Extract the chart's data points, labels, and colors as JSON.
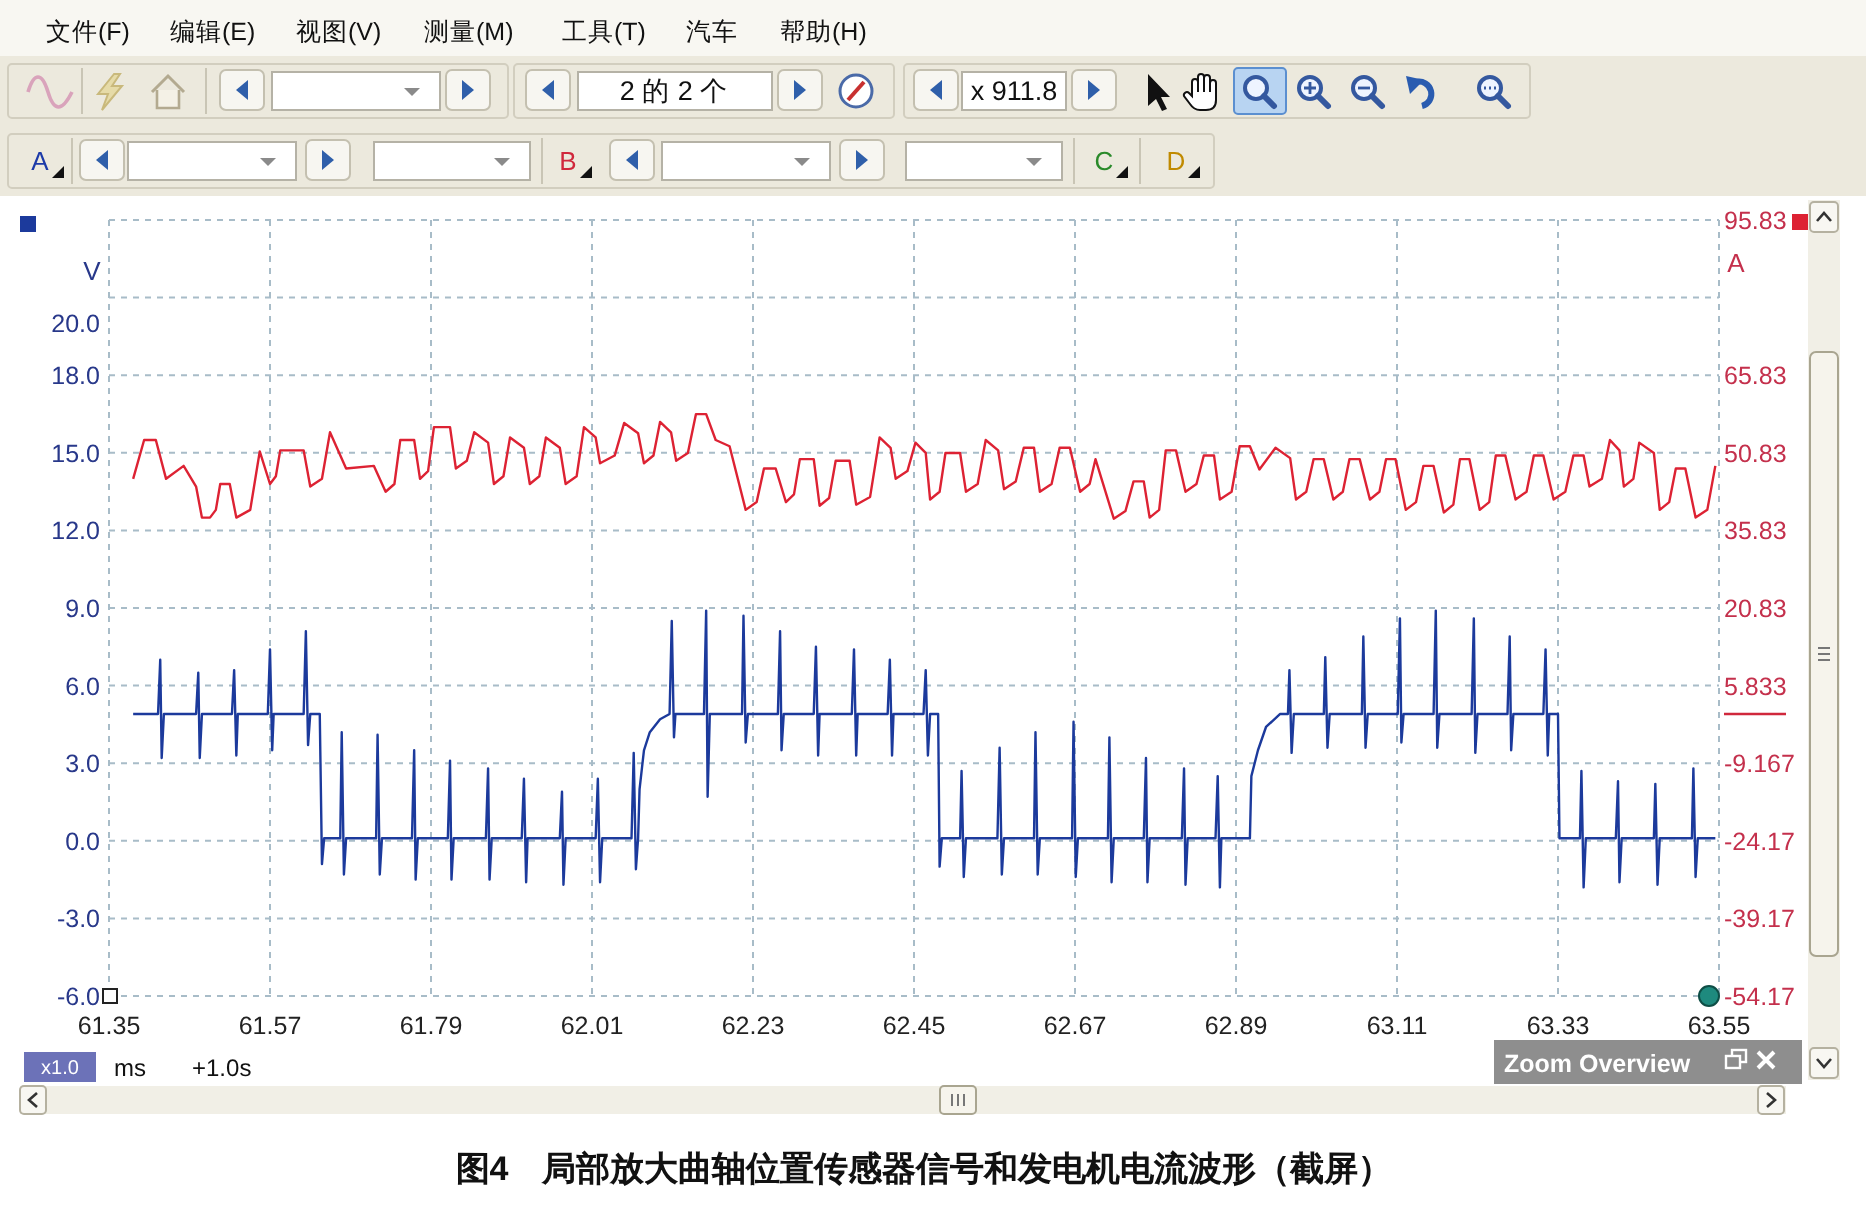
{
  "chart_data": {
    "type": "line",
    "title": "图4　局部放大曲轴位置传感器信号和发电机电流波形（截屏）",
    "xlabel": "ms",
    "ylabel": "V",
    "y2label": "A",
    "annotations": [
      "文件(F)",
      "编辑(E)",
      "视图(V)",
      "测量(M)",
      "工具(T)",
      "汽车",
      "帮助(H)",
      "2 的 2 个",
      "x 911.8",
      "A",
      "B",
      "C",
      "D",
      "x1.0",
      "+1.0s",
      "Zoom Overview"
    ],
    "xlim": [
      61.35,
      63.55
    ],
    "xticks": [
      61.35,
      61.57,
      61.79,
      62.01,
      62.23,
      62.45,
      62.67,
      62.89,
      63.11,
      63.33,
      63.55
    ],
    "ylim": [
      -6,
      24
    ],
    "yticks": [
      {
        "value": -6,
        "label": "-6.0"
      },
      {
        "value": -3,
        "label": "-3.0"
      },
      {
        "value": 0,
        "label": "0.0"
      },
      {
        "value": 3,
        "label": "3.0"
      },
      {
        "value": 6,
        "label": "6.0"
      },
      {
        "value": 9,
        "label": "9.0"
      },
      {
        "value": 12,
        "label": "12.0"
      },
      {
        "value": 15,
        "label": "15.0"
      },
      {
        "value": 18,
        "label": "18.0"
      },
      {
        "value": 20,
        "label": "20.0"
      }
    ],
    "y2lim": [
      -54.17,
      95.83
    ],
    "y2ticks": [
      -54.17,
      -39.17,
      -24.17,
      -9.167,
      5.833,
      20.83,
      35.83,
      50.83,
      65.83,
      {
        "value": 80.83,
        "label": null
      },
      95.83
    ],
    "grid": true,
    "series": [
      {
        "color": "#1c3a9c",
        "x": [
          61.383,
          61.417,
          61.42,
          61.422,
          61.425,
          61.469,
          61.472,
          61.474,
          61.477,
          61.518,
          61.521,
          61.524,
          61.526,
          61.567,
          61.57,
          61.573,
          61.575,
          61.616,
          61.619,
          61.622,
          61.625,
          61.638,
          61.641,
          61.644,
          61.666,
          61.668,
          61.671,
          61.674,
          61.715,
          61.717,
          61.72,
          61.723,
          61.764,
          61.767,
          61.769,
          61.772,
          61.813,
          61.816,
          61.818,
          61.821,
          61.865,
          61.868,
          61.87,
          61.873,
          61.914,
          61.917,
          61.92,
          61.922,
          61.966,
          61.969,
          61.971,
          61.974,
          62.015,
          62.018,
          62.021,
          62.024,
          62.064,
          62.067,
          62.07,
          62.073,
          62.075,
          62.081,
          62.089,
          62.103,
          62.116,
          62.119,
          62.122,
          62.124,
          62.163,
          62.166,
          62.168,
          62.171,
          62.215,
          62.217,
          62.22,
          62.223,
          62.264,
          62.267,
          62.269,
          62.272,
          62.313,
          62.316,
          62.319,
          62.321,
          62.365,
          62.368,
          62.371,
          62.373,
          62.414,
          62.417,
          62.42,
          62.422,
          62.463,
          62.466,
          62.469,
          62.472,
          62.483,
          62.485,
          62.488,
          62.513,
          62.515,
          62.518,
          62.521,
          62.564,
          62.567,
          62.57,
          62.573,
          62.614,
          62.616,
          62.619,
          62.622,
          62.666,
          62.668,
          62.671,
          62.674,
          62.715,
          62.717,
          62.72,
          62.723,
          62.764,
          62.767,
          62.769,
          62.772,
          62.816,
          62.819,
          62.821,
          62.824,
          62.862,
          62.865,
          62.868,
          62.87,
          62.909,
          62.911,
          62.92,
          62.931,
          62.95,
          62.961,
          62.963,
          62.966,
          62.969,
          63.01,
          63.012,
          63.015,
          63.018,
          63.062,
          63.064,
          63.067,
          63.07,
          63.111,
          63.114,
          63.116,
          63.119,
          63.16,
          63.163,
          63.165,
          63.168,
          63.212,
          63.215,
          63.217,
          63.22,
          63.261,
          63.264,
          63.266,
          63.269,
          63.31,
          63.313,
          63.316,
          63.318,
          63.33,
          63.332,
          63.36,
          63.362,
          63.365,
          63.368,
          63.409,
          63.412,
          63.414,
          63.417,
          63.461,
          63.463,
          63.466,
          63.469,
          63.513,
          63.515,
          63.518,
          63.521,
          63.545
        ],
        "values": [
          4.9,
          4.9,
          7.0,
          3.2,
          4.9,
          4.9,
          6.5,
          3.2,
          4.9,
          4.9,
          6.6,
          3.3,
          4.9,
          4.9,
          7.4,
          3.5,
          4.9,
          4.9,
          8.1,
          3.7,
          4.9,
          4.9,
          -0.9,
          0.1,
          0.1,
          4.2,
          -1.3,
          0.1,
          0.1,
          4.1,
          -1.3,
          0.1,
          0.1,
          3.5,
          -1.5,
          0.1,
          0.1,
          3.1,
          -1.5,
          0.1,
          0.1,
          2.8,
          -1.5,
          0.1,
          0.1,
          2.4,
          -1.6,
          0.1,
          0.1,
          1.9,
          -1.7,
          0.1,
          0.1,
          2.4,
          -1.6,
          0.1,
          0.1,
          3.4,
          -1.1,
          0.1,
          2.0,
          3.5,
          4.2,
          4.7,
          4.9,
          8.5,
          4.0,
          4.9,
          4.9,
          8.9,
          1.7,
          4.9,
          4.9,
          8.7,
          3.8,
          4.9,
          4.9,
          8.1,
          3.5,
          4.9,
          4.9,
          7.5,
          3.3,
          4.9,
          4.9,
          7.4,
          3.3,
          4.9,
          4.9,
          7.0,
          3.3,
          4.9,
          4.9,
          6.6,
          3.3,
          4.9,
          4.9,
          -1.0,
          0.1,
          0.1,
          2.7,
          -1.4,
          0.1,
          0.1,
          3.6,
          -1.3,
          0.1,
          0.1,
          4.2,
          -1.3,
          0.1,
          0.1,
          4.6,
          -1.4,
          0.1,
          0.1,
          4.0,
          -1.6,
          0.1,
          0.1,
          3.2,
          -1.6,
          0.1,
          0.1,
          2.8,
          -1.7,
          0.1,
          0.1,
          2.5,
          -1.8,
          0.1,
          0.1,
          2.5,
          3.5,
          4.4,
          4.9,
          4.9,
          6.6,
          3.4,
          4.9,
          4.9,
          7.1,
          3.6,
          4.9,
          4.9,
          7.9,
          3.6,
          4.9,
          4.9,
          8.6,
          3.8,
          4.9,
          4.9,
          8.9,
          3.6,
          4.9,
          4.9,
          8.6,
          3.4,
          4.9,
          4.9,
          7.9,
          3.5,
          4.9,
          4.9,
          7.4,
          3.3,
          4.9,
          4.9,
          0.1,
          0.1,
          2.7,
          -1.8,
          0.1,
          0.1,
          2.3,
          -1.6,
          0.1,
          0.1,
          2.2,
          -1.7,
          0.1,
          0.1,
          2.8,
          -1.4,
          0.1,
          0.1
        ]
      },
      {
        "color": "#dd2233",
        "axis": "y2",
        "x": [
          61.383,
          61.398,
          61.414,
          61.428,
          61.452,
          61.469,
          61.477,
          61.488,
          61.496,
          61.502,
          61.515,
          61.524,
          61.543,
          61.556,
          61.57,
          61.578,
          61.584,
          61.616,
          61.625,
          61.641,
          61.652,
          61.674,
          61.712,
          61.728,
          61.74,
          61.748,
          61.767,
          61.775,
          61.786,
          61.794,
          61.816,
          61.824,
          61.839,
          61.849,
          61.868,
          61.876,
          61.889,
          61.898,
          61.917,
          61.925,
          61.938,
          61.947,
          61.966,
          61.974,
          61.989,
          61.999,
          62.015,
          62.021,
          62.041,
          62.054,
          62.073,
          62.081,
          62.094,
          62.103,
          62.118,
          62.125,
          62.141,
          62.152,
          62.166,
          62.179,
          62.198,
          62.22,
          62.235,
          62.245,
          62.261,
          62.275,
          62.286,
          62.294,
          62.313,
          62.321,
          62.334,
          62.343,
          62.362,
          62.371,
          62.39,
          62.403,
          62.418,
          62.425,
          62.441,
          62.452,
          62.466,
          62.472,
          62.485,
          62.493,
          62.513,
          62.521,
          62.537,
          62.548,
          62.565,
          62.573,
          62.589,
          62.6,
          62.614,
          62.622,
          62.638,
          62.649,
          62.663,
          62.677,
          62.69,
          62.698,
          62.723,
          62.739,
          62.75,
          62.764,
          62.772,
          62.785,
          62.794,
          62.808,
          62.821,
          62.836,
          62.846,
          62.86,
          62.868,
          62.884,
          62.895,
          62.909,
          62.922,
          62.944,
          62.964,
          62.972,
          62.986,
          62.996,
          63.01,
          63.023,
          63.036,
          63.045,
          63.059,
          63.073,
          63.086,
          63.095,
          63.108,
          63.122,
          63.136,
          63.146,
          63.16,
          63.174,
          63.187,
          63.196,
          63.209,
          63.223,
          63.236,
          63.245,
          63.258,
          63.272,
          63.287,
          63.297,
          63.31,
          63.324,
          63.34,
          63.351,
          63.365,
          63.373,
          63.39,
          63.401,
          63.414,
          63.42,
          63.433,
          63.441,
          63.461,
          63.469,
          63.482,
          63.491,
          63.504,
          63.518,
          63.534,
          63.545
        ],
        "values": [
          45.8,
          53.3,
          53.3,
          45.8,
          48.3,
          44.3,
          38.3,
          38.3,
          39.8,
          44.8,
          44.8,
          38.3,
          39.8,
          51.1,
          44.8,
          46.3,
          51.3,
          51.3,
          44.3,
          45.8,
          54.8,
          47.8,
          48.3,
          43.3,
          44.8,
          53.3,
          53.3,
          45.8,
          47.3,
          55.8,
          55.8,
          47.8,
          49.3,
          54.8,
          52.8,
          44.8,
          46.3,
          53.8,
          51.8,
          44.8,
          46.3,
          53.8,
          51.8,
          44.8,
          46.3,
          55.8,
          53.8,
          48.8,
          50.3,
          56.6,
          54.6,
          48.8,
          50.3,
          56.8,
          54.8,
          49.3,
          50.8,
          58.3,
          58.3,
          53.3,
          52.1,
          39.8,
          41.3,
          47.8,
          47.8,
          41.3,
          42.8,
          49.6,
          49.6,
          40.6,
          42.1,
          49.3,
          49.3,
          40.8,
          42.3,
          53.8,
          51.8,
          45.8,
          47.3,
          52.8,
          50.8,
          41.8,
          43.3,
          50.8,
          50.8,
          43.3,
          44.8,
          53.3,
          51.3,
          43.8,
          45.3,
          51.8,
          51.8,
          43.3,
          44.8,
          51.8,
          51.8,
          43.3,
          44.8,
          49.6,
          38.1,
          39.6,
          45.3,
          45.3,
          38.3,
          39.8,
          51.3,
          51.3,
          43.3,
          44.8,
          50.3,
          50.3,
          41.8,
          43.3,
          52.1,
          52.1,
          47.6,
          51.8,
          49.8,
          41.8,
          43.3,
          49.6,
          49.6,
          41.8,
          43.3,
          49.6,
          49.6,
          41.8,
          43.3,
          49.6,
          49.6,
          39.8,
          41.3,
          48.3,
          48.3,
          39.3,
          40.8,
          49.6,
          49.6,
          39.8,
          41.3,
          50.3,
          50.3,
          41.8,
          43.3,
          50.3,
          50.3,
          41.8,
          43.3,
          50.3,
          50.3,
          44.3,
          45.8,
          53.3,
          51.3,
          44.3,
          45.8,
          52.8,
          50.8,
          39.8,
          41.3,
          47.8,
          47.8,
          38.3,
          39.8,
          48.3
        ]
      }
    ]
  }
}
